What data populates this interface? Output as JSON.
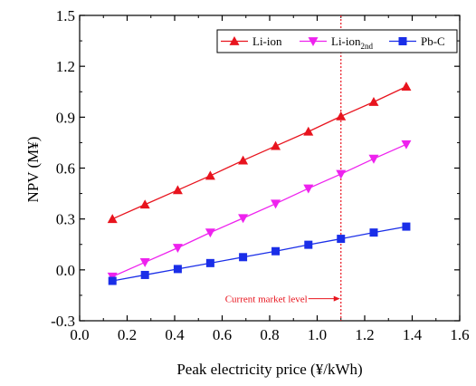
{
  "chart_data": {
    "type": "line",
    "xlabel": "Peak electricity price (¥/kWh)",
    "ylabel": "NPV (M¥)",
    "xlim": [
      0.0,
      1.6
    ],
    "ylim": [
      -0.3,
      1.5
    ],
    "x_ticks": [
      "0.0",
      "0.2",
      "0.4",
      "0.6",
      "0.8",
      "1.0",
      "1.2",
      "1.4",
      "1.6"
    ],
    "y_ticks": [
      "-0.3",
      "0.0",
      "0.3",
      "0.6",
      "0.9",
      "1.2",
      "1.5"
    ],
    "x": [
      0.138,
      0.275,
      0.413,
      0.55,
      0.688,
      0.825,
      0.963,
      1.1,
      1.238,
      1.375
    ],
    "series": [
      {
        "name": "Li-ion",
        "marker": "triangle-up",
        "color": "#e8141e",
        "values": [
          0.3,
          0.385,
          0.47,
          0.555,
          0.645,
          0.73,
          0.815,
          0.905,
          0.99,
          1.08
        ]
      },
      {
        "name": "Li-ion",
        "name_subscript": "2nd",
        "marker": "triangle-down",
        "color": "#ee22ee",
        "values": [
          -0.04,
          0.045,
          0.13,
          0.22,
          0.305,
          0.39,
          0.48,
          0.565,
          0.655,
          0.74
        ]
      },
      {
        "name": "Pb-C",
        "marker": "square",
        "color": "#1a2ee8",
        "values": [
          -0.065,
          -0.03,
          0.005,
          0.04,
          0.075,
          0.11,
          0.148,
          0.183,
          0.22,
          0.255
        ]
      }
    ],
    "reference_line": {
      "x": 1.1,
      "orientation": "vertical",
      "style": "dotted",
      "color": "#e8141e"
    },
    "annotations": [
      {
        "text": "Current market level",
        "color": "#e8141e",
        "x": 1.1,
        "y": -0.17,
        "arrow": "right"
      }
    ],
    "legend_position": "top-right",
    "grid": false
  }
}
